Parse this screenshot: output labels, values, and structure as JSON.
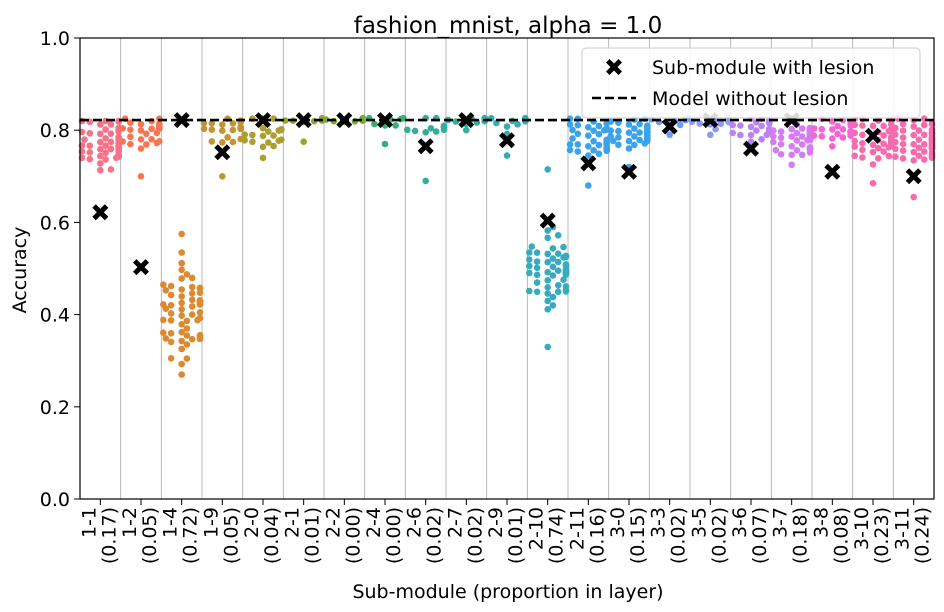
{
  "chart_data": {
    "type": "scatter",
    "subtype": "swarm",
    "title": "fashion_mnist, alpha = 1.0",
    "xlabel": "Sub-module (proportion in layer)",
    "ylabel": "Accuracy",
    "ylim": [
      0.0,
      1.0
    ],
    "yticks": [
      "0.0",
      "0.2",
      "0.4",
      "0.6",
      "0.8",
      "1.0"
    ],
    "grid": "vertical",
    "legend_position": "top-right",
    "legend": {
      "lesion_label": "Sub-module with lesion",
      "baseline_label": "Model without lesion"
    },
    "baseline": 0.822,
    "categories": [
      {
        "name": "1-1",
        "proportion": "(0.17)",
        "color": "#f77189",
        "lesion": 0.622,
        "center": 0.77,
        "spread": 0.04,
        "min": 0.62,
        "max": 0.82,
        "n": 60
      },
      {
        "name": "1-2",
        "proportion": "(0.05)",
        "color": "#f7754f",
        "lesion": 0.503,
        "center": 0.8,
        "spread": 0.03,
        "min": 0.7,
        "max": 0.825,
        "n": 30
      },
      {
        "name": "1-4",
        "proportion": "(0.72)",
        "color": "#dc8932",
        "lesion": 0.822,
        "center": 0.41,
        "spread": 0.07,
        "min": 0.27,
        "max": 0.575,
        "n": 60
      },
      {
        "name": "1-9",
        "proportion": "(0.05)",
        "color": "#c39532",
        "lesion": 0.752,
        "center": 0.8,
        "spread": 0.03,
        "min": 0.7,
        "max": 0.825,
        "n": 25
      },
      {
        "name": "2-0",
        "proportion": "(0.04)",
        "color": "#ae9d31",
        "lesion": 0.822,
        "center": 0.79,
        "spread": 0.03,
        "min": 0.74,
        "max": 0.825,
        "n": 20
      },
      {
        "name": "2-1",
        "proportion": "(0.01)",
        "color": "#97a431",
        "lesion": 0.822,
        "center": 0.82,
        "spread": 0.004,
        "min": 0.775,
        "max": 0.826,
        "n": 8
      },
      {
        "name": "2-2",
        "proportion": "(0.00)",
        "color": "#77ab31",
        "lesion": 0.822,
        "center": 0.822,
        "spread": 0.002,
        "min": 0.818,
        "max": 0.826,
        "n": 6
      },
      {
        "name": "2-4",
        "proportion": "(0.00)",
        "color": "#33b07a",
        "lesion": 0.822,
        "center": 0.82,
        "spread": 0.01,
        "min": 0.77,
        "max": 0.826,
        "n": 8
      },
      {
        "name": "2-6",
        "proportion": "(0.02)",
        "color": "#35ad9c",
        "lesion": 0.765,
        "center": 0.81,
        "spread": 0.02,
        "min": 0.69,
        "max": 0.826,
        "n": 12
      },
      {
        "name": "2-7",
        "proportion": "(0.02)",
        "color": "#36ada4",
        "lesion": 0.822,
        "center": 0.82,
        "spread": 0.008,
        "min": 0.8,
        "max": 0.826,
        "n": 10
      },
      {
        "name": "2-9",
        "proportion": "(0.01)",
        "color": "#37abb4",
        "lesion": 0.778,
        "center": 0.815,
        "spread": 0.015,
        "min": 0.745,
        "max": 0.826,
        "n": 10
      },
      {
        "name": "2-10",
        "proportion": "(0.74)",
        "color": "#38aabf",
        "lesion": 0.604,
        "center": 0.5,
        "spread": 0.06,
        "min": 0.33,
        "max": 0.715,
        "n": 60
      },
      {
        "name": "2-11",
        "proportion": "(0.16)",
        "color": "#3ba3ec",
        "lesion": 0.728,
        "center": 0.78,
        "spread": 0.03,
        "min": 0.68,
        "max": 0.825,
        "n": 50
      },
      {
        "name": "3-0",
        "proportion": "(0.15)",
        "color": "#3ba3ec",
        "lesion": 0.71,
        "center": 0.79,
        "spread": 0.025,
        "min": 0.72,
        "max": 0.825,
        "n": 45
      },
      {
        "name": "3-3",
        "proportion": "(0.02)",
        "color": "#6e9bf4",
        "lesion": 0.808,
        "center": 0.815,
        "spread": 0.01,
        "min": 0.79,
        "max": 0.826,
        "n": 10
      },
      {
        "name": "3-5",
        "proportion": "(0.02)",
        "color": "#8d99f6",
        "lesion": 0.822,
        "center": 0.815,
        "spread": 0.012,
        "min": 0.79,
        "max": 0.826,
        "n": 10
      },
      {
        "name": "3-6",
        "proportion": "(0.07)",
        "color": "#bb83f4",
        "lesion": 0.76,
        "center": 0.8,
        "spread": 0.02,
        "min": 0.76,
        "max": 0.825,
        "n": 25
      },
      {
        "name": "3-7",
        "proportion": "(0.18)",
        "color": "#d57cf2",
        "lesion": 0.822,
        "center": 0.78,
        "spread": 0.025,
        "min": 0.725,
        "max": 0.825,
        "n": 60
      },
      {
        "name": "3-8",
        "proportion": "(0.08)",
        "color": "#f564d4",
        "lesion": 0.71,
        "center": 0.8,
        "spread": 0.015,
        "min": 0.765,
        "max": 0.825,
        "n": 30
      },
      {
        "name": "3-10",
        "proportion": "(0.23)",
        "color": "#f66bad",
        "lesion": 0.788,
        "center": 0.78,
        "spread": 0.03,
        "min": 0.685,
        "max": 0.825,
        "n": 60
      },
      {
        "name": "3-11",
        "proportion": "(0.24)",
        "color": "#f66bad",
        "lesion": 0.7,
        "center": 0.78,
        "spread": 0.03,
        "min": 0.655,
        "max": 0.825,
        "n": 60
      }
    ]
  }
}
